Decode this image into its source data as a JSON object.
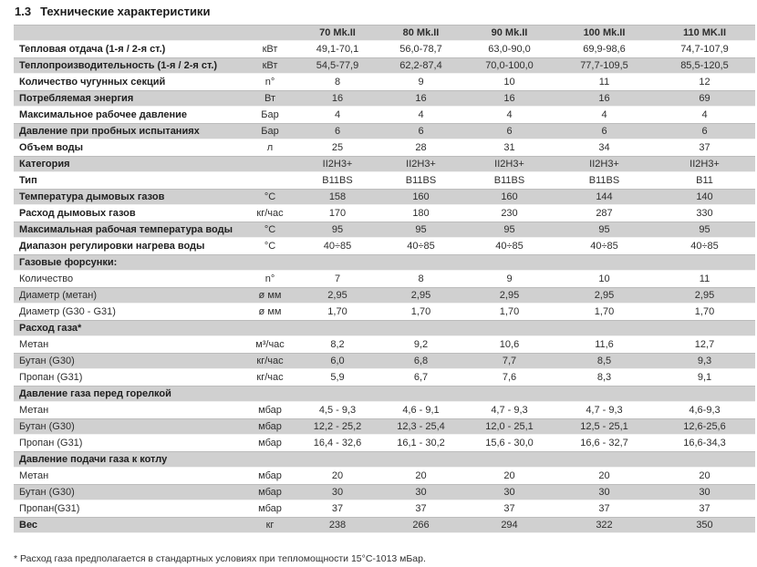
{
  "page": {
    "title_number": "1.3",
    "title_text": "Технические характеристики",
    "footnote": "* Расход газа предполагается в стандартных условиях при тепломощности 15°C-1013 мБар."
  },
  "table": {
    "columns": [
      "70 Mk.II",
      "80 Mk.II",
      "90 Mk.II",
      "100 Mk.II",
      "110 MK.II"
    ],
    "rows": [
      {
        "label": "Тепловая отдача (1-я / 2-я ст.)",
        "unit": "кВт",
        "bold": true,
        "values": [
          "49,1-70,1",
          "56,0-78,7",
          "63,0-90,0",
          "69,9-98,6",
          "74,7-107,9"
        ]
      },
      {
        "label": "Теплопроизводительность (1-я / 2-я ст.)",
        "unit": "кВт",
        "bold": true,
        "values": [
          "54,5-77,9",
          "62,2-87,4",
          "70,0-100,0",
          "77,7-109,5",
          "85,5-120,5"
        ]
      },
      {
        "label": "Количество чугунных секций",
        "unit": "n°",
        "bold": true,
        "values": [
          "8",
          "9",
          "10",
          "11",
          "12"
        ]
      },
      {
        "label": "Потребляемая энергия",
        "unit": "Вт",
        "bold": true,
        "values": [
          "16",
          "16",
          "16",
          "16",
          "69"
        ]
      },
      {
        "label": "Максимальное рабочее давление",
        "unit": "Бар",
        "bold": true,
        "values": [
          "4",
          "4",
          "4",
          "4",
          "4"
        ]
      },
      {
        "label": "Давление при пробных испытаниях",
        "unit": "Бар",
        "bold": true,
        "values": [
          "6",
          "6",
          "6",
          "6",
          "6"
        ]
      },
      {
        "label": "Объем воды",
        "unit": "л",
        "bold": true,
        "values": [
          "25",
          "28",
          "31",
          "34",
          "37"
        ]
      },
      {
        "label": "Категория",
        "unit": "",
        "bold": true,
        "values": [
          "II2H3+",
          "II2H3+",
          "II2H3+",
          "II2H3+",
          "II2H3+"
        ]
      },
      {
        "label": "Тип",
        "unit": "",
        "bold": true,
        "values": [
          "B11BS",
          "B11BS",
          "B11BS",
          "B11BS",
          "B11"
        ]
      },
      {
        "label": "Температура дымовых газов",
        "unit": "°C",
        "bold": true,
        "values": [
          "158",
          "160",
          "160",
          "144",
          "140"
        ]
      },
      {
        "label": "Расход дымовых газов",
        "unit": "кг/час",
        "bold": true,
        "values": [
          "170",
          "180",
          "230",
          "287",
          "330"
        ]
      },
      {
        "label": "Максимальная рабочая температура воды",
        "unit": "°C",
        "bold": true,
        "values": [
          "95",
          "95",
          "95",
          "95",
          "95"
        ]
      },
      {
        "label": "Диапазон регулировки нагрева воды",
        "unit": "°C",
        "bold": true,
        "values": [
          "40÷85",
          "40÷85",
          "40÷85",
          "40÷85",
          "40÷85"
        ]
      },
      {
        "label": "Газовые форсунки:",
        "unit": "",
        "bold": true,
        "section": true,
        "values": [
          "",
          "",
          "",
          "",
          ""
        ]
      },
      {
        "label": "Количество",
        "unit": "n°",
        "bold": false,
        "values": [
          "7",
          "8",
          "9",
          "10",
          "11"
        ]
      },
      {
        "label": "Диаметр (метан)",
        "unit": "ø мм",
        "bold": false,
        "values": [
          "2,95",
          "2,95",
          "2,95",
          "2,95",
          "2,95"
        ]
      },
      {
        "label": "Диаметр (G30 - G31)",
        "unit": "ø мм",
        "bold": false,
        "values": [
          "1,70",
          "1,70",
          "1,70",
          "1,70",
          "1,70"
        ]
      },
      {
        "label": "Расход газа*",
        "unit": "",
        "bold": true,
        "section": true,
        "values": [
          "",
          "",
          "",
          "",
          ""
        ]
      },
      {
        "label": "Метан",
        "unit": "м³/час",
        "bold": false,
        "values": [
          "8,2",
          "9,2",
          "10,6",
          "11,6",
          "12,7"
        ]
      },
      {
        "label": "Бутан (G30)",
        "unit": "кг/час",
        "bold": false,
        "values": [
          "6,0",
          "6,8",
          "7,7",
          "8,5",
          "9,3"
        ]
      },
      {
        "label": "Пропан (G31)",
        "unit": "кг/час",
        "bold": false,
        "values": [
          "5,9",
          "6,7",
          "7,6",
          "8,3",
          "9,1"
        ]
      },
      {
        "label": "Давление газа перед горелкой",
        "unit": "",
        "bold": true,
        "section": true,
        "values": [
          "",
          "",
          "",
          "",
          ""
        ]
      },
      {
        "label": "Метан",
        "unit": "мбар",
        "bold": false,
        "values": [
          "4,5 - 9,3",
          "4,6 - 9,1",
          "4,7 - 9,3",
          "4,7 - 9,3",
          "4,6-9,3"
        ]
      },
      {
        "label": "Бутан (G30)",
        "unit": "мбар",
        "bold": false,
        "values": [
          "12,2 - 25,2",
          "12,3 - 25,4",
          "12,0 - 25,1",
          "12,5 - 25,1",
          "12,6-25,6"
        ]
      },
      {
        "label": "Пропан (G31)",
        "unit": "мбар",
        "bold": false,
        "values": [
          "16,4 - 32,6",
          "16,1 - 30,2",
          "15,6 - 30,0",
          "16,6 - 32,7",
          "16,6-34,3"
        ]
      },
      {
        "label": "Давление подачи газа к котлу",
        "unit": "",
        "bold": true,
        "section": true,
        "values": [
          "",
          "",
          "",
          "",
          ""
        ]
      },
      {
        "label": "Метан",
        "unit": "мбар",
        "bold": false,
        "values": [
          "20",
          "20",
          "20",
          "20",
          "20"
        ]
      },
      {
        "label": "Бутан (G30)",
        "unit": "мбар",
        "bold": false,
        "values": [
          "30",
          "30",
          "30",
          "30",
          "30"
        ]
      },
      {
        "label": "Пропан(G31)",
        "unit": "мбар",
        "bold": false,
        "values": [
          "37",
          "37",
          "37",
          "37",
          "37"
        ]
      },
      {
        "label": "Вес",
        "unit": "кг",
        "bold": true,
        "values": [
          "238",
          "266",
          "294",
          "322",
          "350"
        ]
      }
    ]
  }
}
